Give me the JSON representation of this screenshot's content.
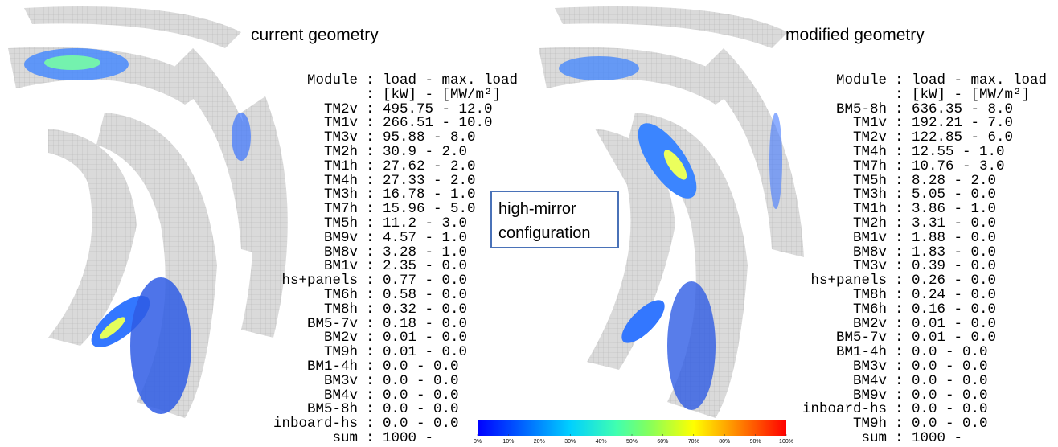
{
  "left": {
    "title": "current geometry",
    "header": {
      "module": "Module",
      "entry": ": load - max. load",
      "units": ": [kW] - [MW/m²]"
    },
    "rows": [
      {
        "module": "TM2v",
        "entry": ": 495.75 - 12.0"
      },
      {
        "module": "TM1v",
        "entry": ": 266.51 - 10.0"
      },
      {
        "module": "TM3v",
        "entry": ": 95.88 - 8.0"
      },
      {
        "module": "TM2h",
        "entry": ": 30.9 - 2.0"
      },
      {
        "module": "TM1h",
        "entry": ": 27.62 - 2.0"
      },
      {
        "module": "TM4h",
        "entry": ": 27.33 - 2.0"
      },
      {
        "module": "TM3h",
        "entry": ": 16.78 - 1.0"
      },
      {
        "module": "TM7h",
        "entry": ": 15.96 - 5.0"
      },
      {
        "module": "TM5h",
        "entry": ": 11.2 - 3.0"
      },
      {
        "module": "BM9v",
        "entry": ": 4.57 - 1.0"
      },
      {
        "module": "BM8v",
        "entry": ": 3.28 - 1.0"
      },
      {
        "module": "BM1v",
        "entry": ": 2.35 - 0.0"
      },
      {
        "module": "hs+panels",
        "entry": ": 0.77 - 0.0"
      },
      {
        "module": "TM6h",
        "entry": ": 0.58 - 0.0"
      },
      {
        "module": "TM8h",
        "entry": ": 0.32 - 0.0"
      },
      {
        "module": "BM5-7v",
        "entry": ": 0.18 - 0.0"
      },
      {
        "module": "BM2v",
        "entry": ": 0.01 - 0.0"
      },
      {
        "module": "TM9h",
        "entry": ": 0.01 - 0.0"
      },
      {
        "module": "BM1-4h",
        "entry": ": 0.0 - 0.0"
      },
      {
        "module": "BM3v",
        "entry": ": 0.0 - 0.0"
      },
      {
        "module": "BM4v",
        "entry": ": 0.0 - 0.0"
      },
      {
        "module": "BM5-8h",
        "entry": ": 0.0 - 0.0"
      },
      {
        "module": "inboard-hs",
        "entry": ": 0.0 - 0.0"
      }
    ],
    "sum": {
      "module": "sum",
      "entry": ": 1000 -"
    }
  },
  "right": {
    "title": "modified geometry",
    "header": {
      "module": "Module",
      "entry": ": load - max. load",
      "units": ": [kW] - [MW/m²]"
    },
    "rows": [
      {
        "module": "BM5-8h",
        "entry": ": 636.35 - 8.0"
      },
      {
        "module": "TM1v",
        "entry": ": 192.21 - 7.0"
      },
      {
        "module": "TM2v",
        "entry": ": 122.85 - 6.0"
      },
      {
        "module": "TM4h",
        "entry": ": 12.55 - 1.0"
      },
      {
        "module": "TM7h",
        "entry": ": 10.76 - 3.0"
      },
      {
        "module": "TM5h",
        "entry": ": 8.28 - 2.0"
      },
      {
        "module": "TM3h",
        "entry": ": 5.05 - 0.0"
      },
      {
        "module": "TM1h",
        "entry": ": 3.86 - 1.0"
      },
      {
        "module": "TM2h",
        "entry": ": 3.31 - 0.0"
      },
      {
        "module": "BM1v",
        "entry": ": 1.88 - 0.0"
      },
      {
        "module": "BM8v",
        "entry": ": 1.83 - 0.0"
      },
      {
        "module": "TM3v",
        "entry": ": 0.39 - 0.0"
      },
      {
        "module": "hs+panels",
        "entry": ": 0.26 - 0.0"
      },
      {
        "module": "TM8h",
        "entry": ": 0.24 - 0.0"
      },
      {
        "module": "TM6h",
        "entry": ": 0.16 - 0.0"
      },
      {
        "module": "BM2v",
        "entry": ": 0.01 - 0.0"
      },
      {
        "module": "BM5-7v",
        "entry": ": 0.01 - 0.0"
      },
      {
        "module": "BM1-4h",
        "entry": ": 0.0 - 0.0"
      },
      {
        "module": "BM3v",
        "entry": ": 0.0 - 0.0"
      },
      {
        "module": "BM4v",
        "entry": ": 0.0 - 0.0"
      },
      {
        "module": "BM9v",
        "entry": ": 0.0 - 0.0"
      },
      {
        "module": "inboard-hs",
        "entry": ": 0.0 - 0.0"
      },
      {
        "module": "TM9h",
        "entry": ": 0.0 - 0.0"
      }
    ],
    "sum": {
      "module": "sum",
      "entry": ": 1000 -"
    }
  },
  "center_box": {
    "line1": "high-mirror",
    "line2": "configuration"
  },
  "colorbar": {
    "range": [
      0,
      100
    ],
    "ticks": [
      {
        "value": 0,
        "label": "0%"
      },
      {
        "value": 10,
        "label": "10%"
      },
      {
        "value": 20,
        "label": "20%"
      },
      {
        "value": 30,
        "label": "30%"
      },
      {
        "value": 40,
        "label": "40%"
      },
      {
        "value": 50,
        "label": "50%"
      },
      {
        "value": 60,
        "label": "60%"
      },
      {
        "value": 70,
        "label": "70%"
      },
      {
        "value": 80,
        "label": "80%"
      },
      {
        "value": 90,
        "label": "90%"
      },
      {
        "value": 100,
        "label": "100%"
      }
    ]
  }
}
